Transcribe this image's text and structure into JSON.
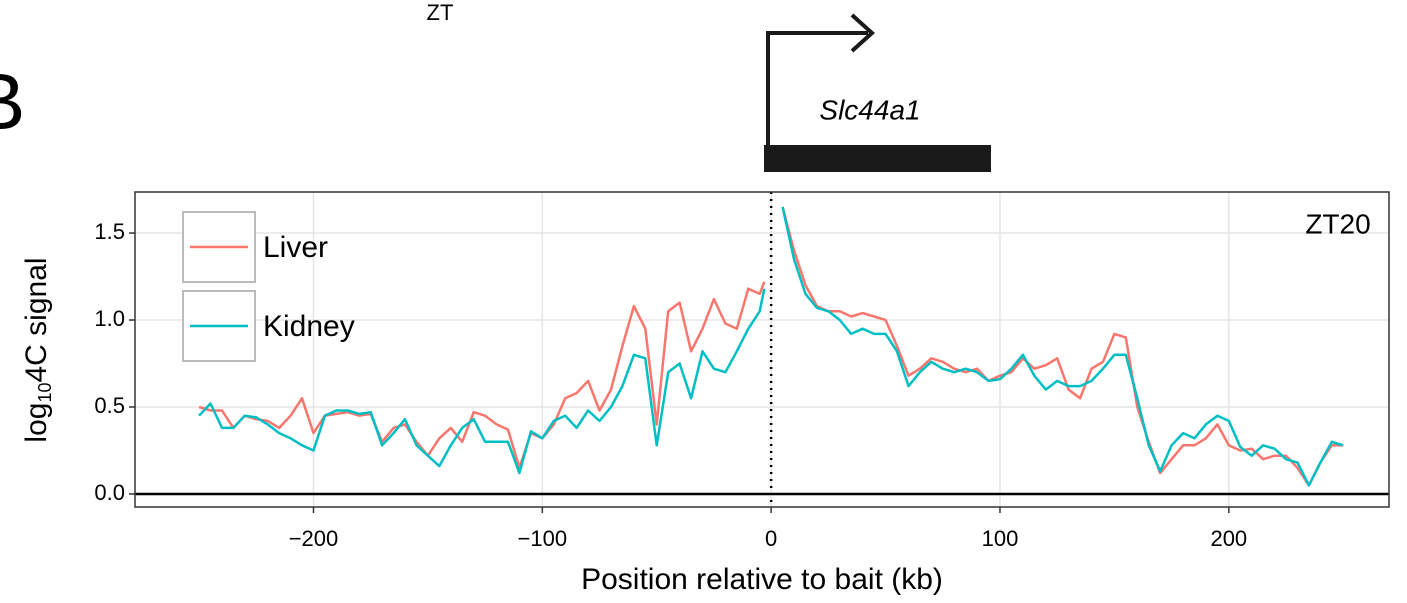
{
  "chart_data": {
    "type": "line",
    "header_text": "ZT",
    "panel_label": "B",
    "gene": "Slc44a1",
    "annotation": "ZT20",
    "xlabel": "Position relative to bait (kb)",
    "ylabel": {
      "base": "log",
      "subscript": "10",
      "rest": "4C signal"
    },
    "x": [
      -250,
      -245,
      -240,
      -235,
      -230,
      -225,
      -220,
      -215,
      -210,
      -205,
      -200,
      -195,
      -190,
      -185,
      -180,
      -175,
      -170,
      -165,
      -160,
      -155,
      -150,
      -145,
      -140,
      -135,
      -130,
      -125,
      -120,
      -115,
      -110,
      -105,
      -100,
      -95,
      -90,
      -85,
      -80,
      -75,
      -70,
      -65,
      -60,
      -55,
      -50,
      -45,
      -40,
      -35,
      -30,
      -25,
      -20,
      -15,
      -10,
      -5,
      -3,
      0,
      5,
      10,
      15,
      20,
      25,
      30,
      35,
      40,
      45,
      50,
      55,
      60,
      65,
      70,
      75,
      80,
      85,
      90,
      95,
      100,
      105,
      110,
      115,
      120,
      125,
      130,
      135,
      140,
      145,
      150,
      155,
      160,
      165,
      170,
      175,
      180,
      185,
      190,
      195,
      200,
      205,
      210,
      215,
      220,
      225,
      230,
      235,
      240,
      245,
      250
    ],
    "series": [
      {
        "name": "Liver",
        "color": "#F8766D",
        "values": [
          0.5,
          0.48,
          0.48,
          0.38,
          0.45,
          0.43,
          0.42,
          0.38,
          0.45,
          0.55,
          0.35,
          0.45,
          0.46,
          0.47,
          0.45,
          0.46,
          0.3,
          0.38,
          0.4,
          0.3,
          0.22,
          0.32,
          0.38,
          0.3,
          0.47,
          0.45,
          0.4,
          0.37,
          0.15,
          0.35,
          0.32,
          0.4,
          0.55,
          0.58,
          0.65,
          0.48,
          0.6,
          0.85,
          1.08,
          0.95,
          0.4,
          1.05,
          1.1,
          0.82,
          0.95,
          1.12,
          0.98,
          0.95,
          1.18,
          1.15,
          1.22,
          null,
          1.65,
          1.4,
          1.2,
          1.08,
          1.05,
          1.05,
          1.02,
          1.04,
          1.02,
          1.0,
          0.85,
          0.68,
          0.72,
          0.78,
          0.76,
          0.72,
          0.7,
          0.72,
          0.65,
          0.68,
          0.7,
          0.78,
          0.72,
          0.74,
          0.78,
          0.6,
          0.55,
          0.72,
          0.76,
          0.92,
          0.9,
          0.5,
          0.3,
          0.12,
          0.2,
          0.28,
          0.28,
          0.32,
          0.4,
          0.28,
          0.25,
          0.26,
          0.2,
          0.22,
          0.22,
          0.15,
          0.05,
          0.18,
          0.28,
          0.28
        ]
      },
      {
        "name": "Kidney",
        "color": "#00BFC4",
        "values": [
          0.45,
          0.52,
          0.38,
          0.38,
          0.45,
          0.44,
          0.4,
          0.35,
          0.32,
          0.28,
          0.25,
          0.45,
          0.48,
          0.48,
          0.46,
          0.47,
          0.28,
          0.35,
          0.43,
          0.28,
          0.22,
          0.16,
          0.28,
          0.38,
          0.43,
          0.3,
          0.3,
          0.3,
          0.12,
          0.36,
          0.32,
          0.42,
          0.45,
          0.38,
          0.48,
          0.42,
          0.5,
          0.62,
          0.8,
          0.78,
          0.28,
          0.7,
          0.75,
          0.55,
          0.82,
          0.72,
          0.7,
          0.82,
          0.95,
          1.05,
          1.18,
          null,
          1.65,
          1.35,
          1.15,
          1.07,
          1.05,
          1.0,
          0.92,
          0.95,
          0.92,
          0.92,
          0.82,
          0.62,
          0.7,
          0.76,
          0.72,
          0.7,
          0.72,
          0.7,
          0.65,
          0.66,
          0.72,
          0.8,
          0.68,
          0.6,
          0.65,
          0.62,
          0.62,
          0.65,
          0.72,
          0.8,
          0.8,
          0.55,
          0.28,
          0.13,
          0.28,
          0.35,
          0.32,
          0.4,
          0.45,
          0.42,
          0.27,
          0.22,
          0.28,
          0.26,
          0.2,
          0.18,
          0.05,
          0.18,
          0.3,
          0.28
        ]
      }
    ],
    "xlim": [
      -278,
      270
    ],
    "ylim": [
      -0.075,
      1.736
    ],
    "xticks": [
      {
        "value": -200,
        "label": "−200"
      },
      {
        "value": -100,
        "label": "−100"
      },
      0,
      100,
      200
    ],
    "yticks": [
      {
        "value": 0,
        "label": "0.0"
      },
      0.5,
      {
        "value": 1,
        "label": "1.0"
      },
      1.5
    ],
    "vline": 0,
    "hline": 0,
    "grid": true
  }
}
